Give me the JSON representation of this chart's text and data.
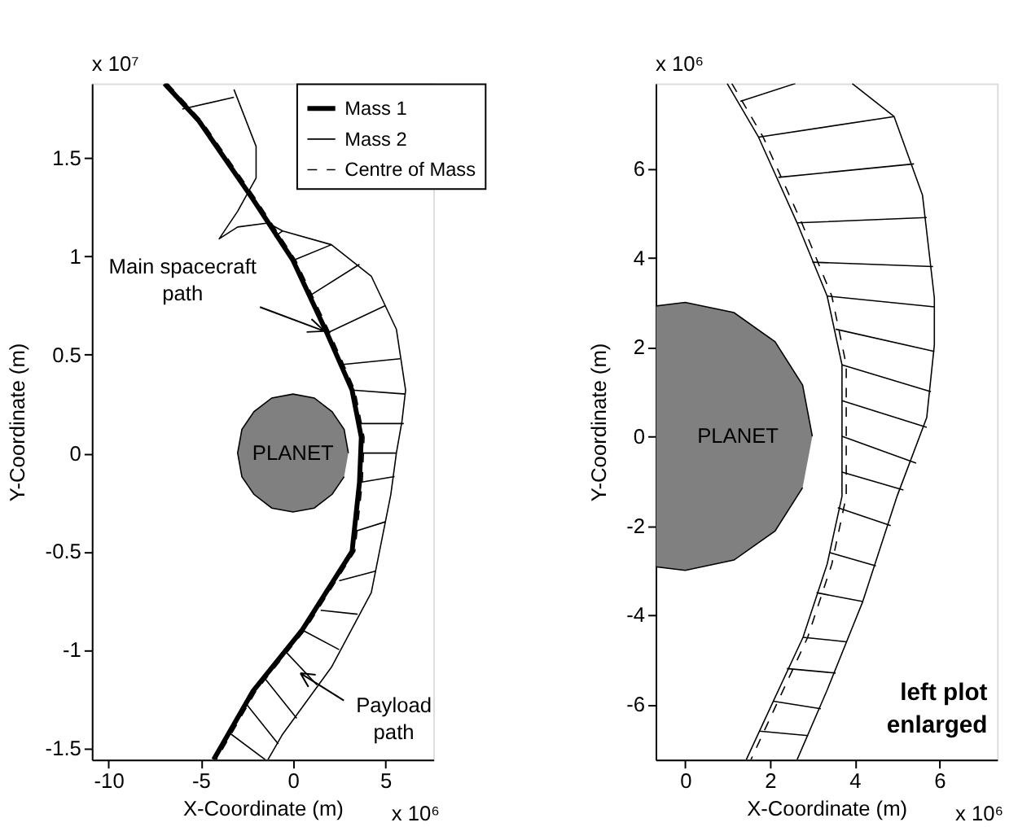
{
  "chart_data": [
    {
      "type": "line",
      "xlabel": "X-Coordinate (m)",
      "ylabel": "Y-Coordinate (m)",
      "xlim": [
        -10.9,
        7.6
      ],
      "ylim": [
        -1.56,
        1.88
      ],
      "xticks": [
        -10,
        -5,
        0,
        5
      ],
      "yticks": [
        -1.5,
        -1,
        -0.5,
        0,
        0.5,
        1,
        1.5
      ],
      "grid": false,
      "legend": "top right",
      "annotations": [
        "x 10⁷",
        "x 10⁶",
        "PLANET",
        {
          "text": "Main spacecraft path",
          "x": 1.7,
          "y": 0.62
        },
        {
          "text": "Payload path",
          "x": 0.4,
          "y": -1.12
        }
      ],
      "series": [
        {
          "name": "Mass 1",
          "color": "#000000",
          "line_style": "solid",
          "x": [
            -6.96,
            -5.1,
            -2.16,
            0,
            1.84,
            3.2,
            3.7,
            3.6,
            3.2,
            0.5,
            -2.16,
            -4.3
          ],
          "values": [
            1.88,
            1.69,
            1.29,
            0.98,
            0.61,
            0.32,
            0.08,
            -0.15,
            -0.5,
            -0.9,
            -1.21,
            -1.56
          ]
        },
        {
          "name": "Mass 2",
          "color": "#000000",
          "line_style": "solid",
          "x": [
            -3.2,
            -2.0,
            -2.0,
            -3.0,
            -4.0,
            -3.0,
            -1.36,
            -0.56,
            2.08,
            4.24,
            5.6,
            6.1,
            5.9,
            5.6,
            5.3,
            4.24,
            2.08,
            -0.56,
            -1.36
          ],
          "values": [
            1.85,
            1.56,
            1.4,
            1.23,
            1.09,
            1.15,
            1.17,
            1.13,
            1.06,
            0.9,
            0.63,
            0.32,
            0.16,
            0.0,
            -0.21,
            -0.71,
            -1.09,
            -1.43,
            -1.56
          ]
        },
        {
          "name": "Centre of Mass",
          "color": "#000000",
          "line_style": "dashed",
          "x": [
            -6.8,
            -4.95,
            -2.0,
            0.15,
            2.0,
            3.35,
            3.85,
            3.75,
            3.35,
            0.65,
            -2.0,
            -4.15
          ],
          "values": [
            1.88,
            1.69,
            1.29,
            0.98,
            0.61,
            0.32,
            0.08,
            -0.15,
            -0.5,
            -0.9,
            -1.21,
            -1.56
          ]
        },
        {
          "color": "#000000",
          "line_style": "solid",
          "x": [
            -6.0,
            -3.2,
            null,
            -1.0,
            -0.56,
            null,
            0.0,
            2.08,
            null,
            0.9,
            3.6,
            null,
            1.84,
            5.0,
            null,
            2.6,
            5.8,
            null,
            3.2,
            6.1,
            null,
            3.6,
            6.0,
            null,
            3.7,
            5.6,
            null,
            3.6,
            5.5,
            null,
            3.3,
            5.0,
            null,
            2.5,
            4.5,
            null,
            1.5,
            3.5,
            null,
            0.5,
            2.5,
            null,
            -0.5,
            1.3,
            null,
            -1.5,
            0.2,
            null,
            -2.5,
            -0.8,
            null,
            -3.5,
            -1.5
          ],
          "values": [
            1.75,
            1.81,
            null,
            1.1,
            1.13,
            null,
            0.98,
            1.06,
            null,
            0.8,
            0.96,
            null,
            0.61,
            0.75,
            null,
            0.45,
            0.48,
            null,
            0.32,
            0.3,
            null,
            0.15,
            0.15,
            null,
            0.0,
            0.0,
            null,
            -0.15,
            -0.12,
            null,
            -0.4,
            -0.35,
            null,
            -0.65,
            -0.6,
            null,
            -0.8,
            -0.82,
            null,
            -0.9,
            -1.0,
            null,
            -1.0,
            -1.18,
            null,
            -1.15,
            -1.35,
            null,
            -1.28,
            -1.48,
            null,
            -1.42,
            -1.56
          ]
        },
        {
          "type": "area",
          "color": "#808080",
          "x": [
            3,
            2.77,
            2.12,
            1.15,
            0,
            -1.15,
            -2.12,
            -2.77,
            -3,
            -2.77,
            -2.12,
            -1.15,
            0,
            1.15,
            2.12,
            2.77
          ],
          "values": [
            0,
            0.12,
            0.21,
            0.28,
            0.3,
            0.28,
            0.21,
            0.12,
            0,
            -0.12,
            -0.21,
            -0.28,
            -0.3,
            -0.28,
            -0.21,
            -0.12
          ]
        }
      ]
    },
    {
      "type": "line",
      "xlabel": "X-Coordinate (m)",
      "ylabel": "Y-Coordinate (m)",
      "xlim": [
        -0.7,
        7.36
      ],
      "ylim": [
        -7.24,
        7.9
      ],
      "xticks": [
        0,
        2,
        4,
        6
      ],
      "yticks": [
        -6,
        -4,
        -2,
        0,
        2,
        4,
        6
      ],
      "grid": false,
      "annotations": [
        "x 10⁶",
        "x 10⁶",
        "PLANET",
        "left plot enlarged"
      ],
      "series": [
        {
          "color": "#000000",
          "line_style": "solid",
          "x": [
            0.99,
            1.73,
            2.64,
            3.35,
            3.7,
            3.7,
            3.7,
            3.35,
            2.78,
            2.08,
            1.44
          ],
          "values": [
            7.9,
            6.7,
            4.78,
            3.14,
            1.6,
            0.42,
            -1.34,
            -2.86,
            -4.5,
            -5.93,
            -7.24
          ]
        },
        {
          "color": "#000000",
          "line_style": "solid",
          "x": [
            3.94,
            4.93,
            5.6,
            5.88,
            5.88,
            5.7,
            5.0,
            4.19,
            3.35,
            2.64
          ],
          "values": [
            7.9,
            7.16,
            5.4,
            3.1,
            2.05,
            0.42,
            -1.34,
            -3.7,
            -5.68,
            -7.24
          ]
        },
        {
          "color": "#000000",
          "line_style": "dashed",
          "x": [
            1.1,
            1.84,
            2.75,
            3.46,
            3.8,
            3.8,
            3.8,
            3.46,
            2.89,
            2.19,
            1.55
          ],
          "values": [
            7.9,
            6.7,
            4.78,
            3.14,
            1.6,
            0.42,
            -1.34,
            -2.86,
            -4.5,
            -5.93,
            -7.24
          ]
        },
        {
          "color": "#000000",
          "line_style": "solid",
          "x": [
            1.3,
            2.6,
            null,
            1.73,
            4.93,
            null,
            2.2,
            5.4,
            null,
            2.64,
            5.7,
            null,
            3.0,
            5.85,
            null,
            3.35,
            5.88,
            null,
            3.55,
            5.88,
            null,
            3.7,
            5.8,
            null,
            3.7,
            5.7,
            null,
            3.7,
            5.45,
            null,
            3.7,
            5.15,
            null,
            3.6,
            4.85,
            null,
            3.4,
            4.5,
            null,
            3.1,
            4.19,
            null,
            2.78,
            3.8,
            null,
            2.4,
            3.55,
            null,
            2.08,
            3.2,
            null,
            1.75,
            2.9
          ],
          "values": [
            7.5,
            7.9,
            null,
            6.7,
            7.16,
            null,
            5.8,
            6.1,
            null,
            4.78,
            4.9,
            null,
            3.9,
            3.8,
            null,
            3.14,
            2.9,
            null,
            2.4,
            1.9,
            null,
            1.6,
            1.0,
            null,
            0.8,
            0.2,
            null,
            0.0,
            -0.6,
            null,
            -0.8,
            -1.2,
            null,
            -1.6,
            -2.0,
            null,
            -2.6,
            -2.9,
            null,
            -3.5,
            -3.7,
            null,
            -4.5,
            -4.6,
            null,
            -5.2,
            -5.3,
            null,
            -5.93,
            -6.1,
            null,
            -6.6,
            -6.7
          ]
        },
        {
          "type": "area",
          "color": "#808080",
          "x": [
            3,
            2.77,
            2.12,
            1.15,
            0,
            -0.7,
            -0.7,
            0,
            1.15,
            2.12,
            2.77
          ],
          "values": [
            0,
            1.15,
            2.12,
            2.77,
            3,
            2.92,
            -2.92,
            -3,
            -2.77,
            -2.12,
            -1.15
          ]
        }
      ]
    }
  ]
}
